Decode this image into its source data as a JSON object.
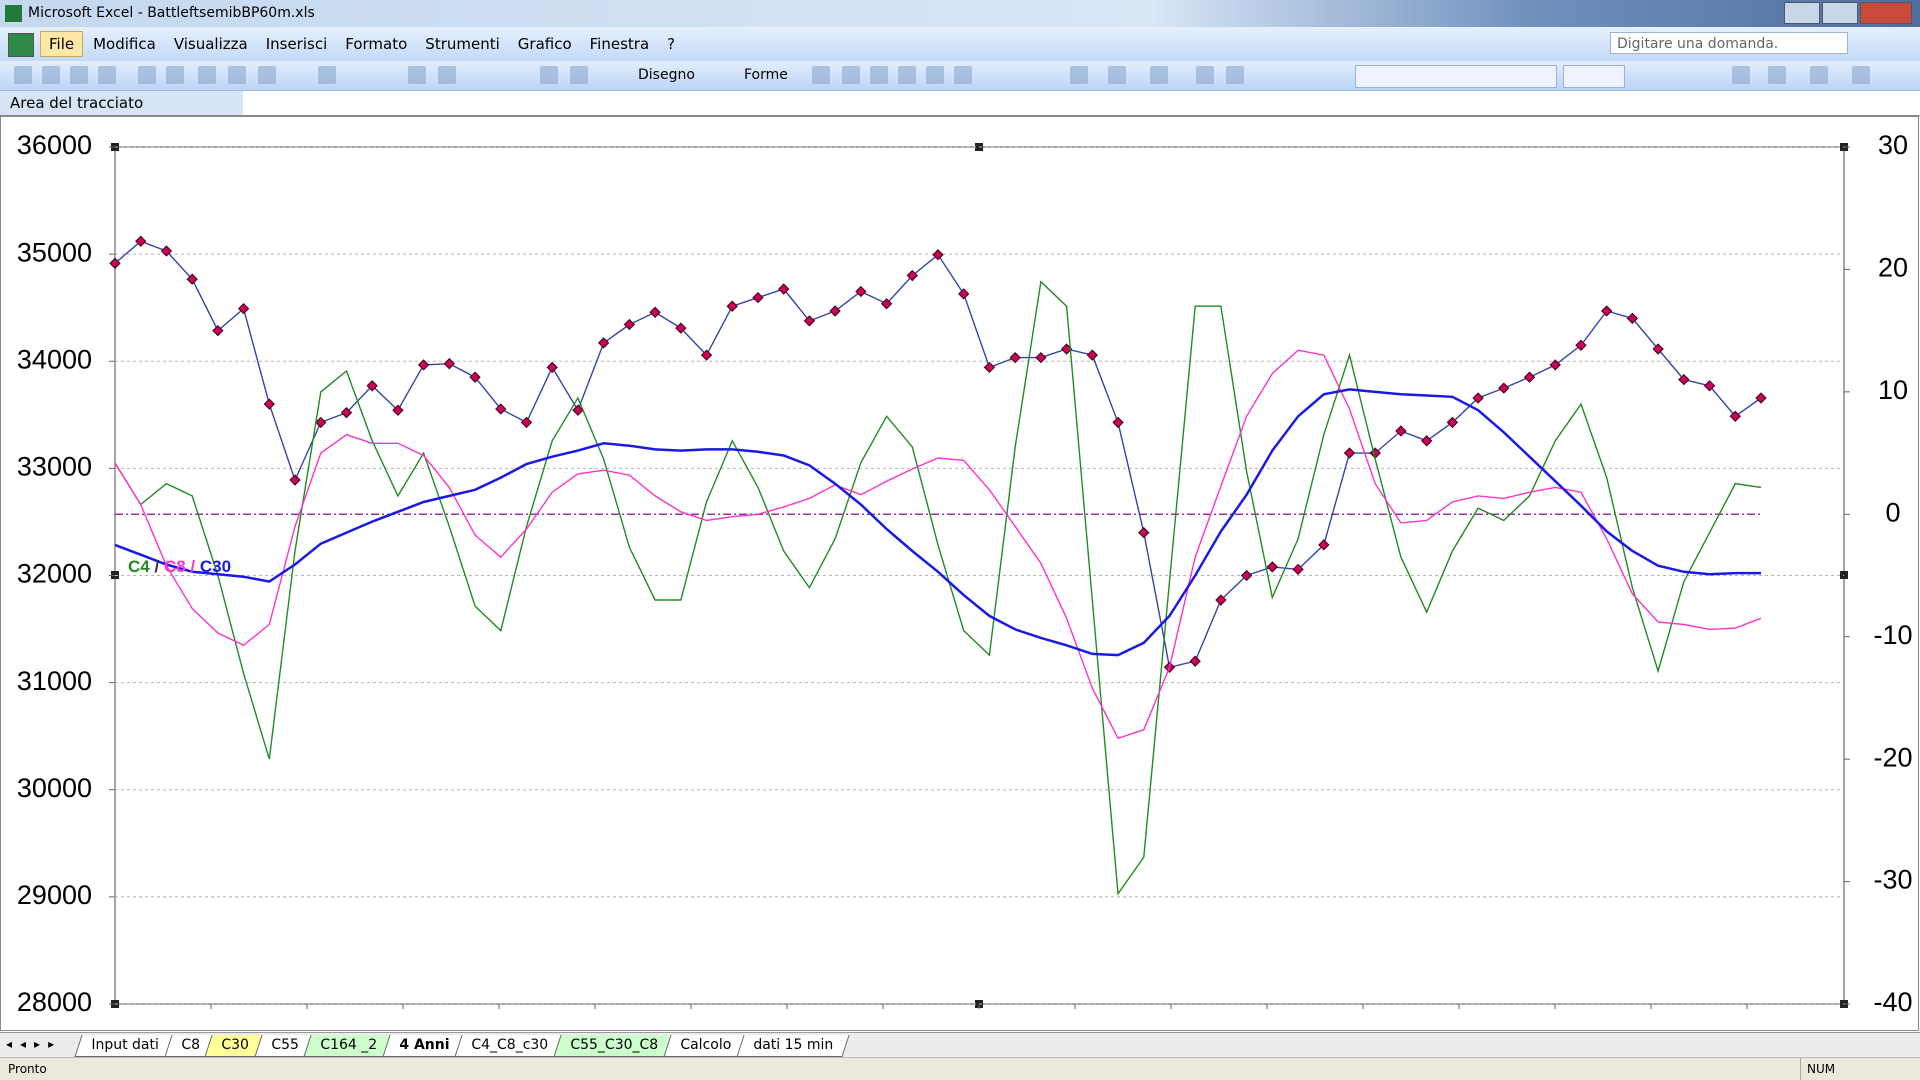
{
  "window": {
    "title": "Microsoft Excel - BattleftsemibBP60m.xls"
  },
  "menu": [
    "File",
    "Modifica",
    "Visualizza",
    "Inserisci",
    "Formato",
    "Strumenti",
    "Grafico",
    "Finestra",
    "?"
  ],
  "help_box": "Digitare una domanda.",
  "toolbar": {
    "drawing": "Disegno",
    "shapes": "Forme"
  },
  "name_box": "Area del tracciato",
  "sheet_tabs": {
    "active": 5,
    "tabs": [
      {
        "label": "Input dati",
        "color": "#ffffff"
      },
      {
        "label": "C8",
        "color": "#ffffff"
      },
      {
        "label": "C30",
        "color": "#ffff99"
      },
      {
        "label": "C55",
        "color": "#ffffff"
      },
      {
        "label": "C164 _2",
        "color": "#ccffcc"
      },
      {
        "label": "4 Anni",
        "color": "#ccffcc"
      },
      {
        "label": "C4_C8_c30",
        "color": "#ffffff"
      },
      {
        "label": "C55_C30_C8",
        "color": "#ccffcc"
      },
      {
        "label": "Calcolo",
        "color": "#ffffff"
      },
      {
        "label": "dati 15 min",
        "color": "#ffffff"
      }
    ]
  },
  "status": {
    "left": "Pronto",
    "right": "NUM"
  },
  "chart_data": {
    "type": "line",
    "ylim": [
      28000,
      36000
    ],
    "yticks": [
      28000,
      29000,
      30000,
      31000,
      32000,
      33000,
      34000,
      35000,
      36000
    ],
    "y2lim": [
      -40,
      30
    ],
    "y2ticks": [
      -40,
      -30,
      -20,
      -10,
      0,
      10,
      20,
      30
    ],
    "grid": true,
    "y2_reference": 0,
    "y2_reference_color": "#993399",
    "legend_separators": [
      "/",
      "/"
    ],
    "series": [
      {
        "color": "#3344aa",
        "marker_color": "#cc0055",
        "axis": "y",
        "values": [
          34914,
          35120,
          35029,
          34766,
          34286,
          34491,
          33600,
          32891,
          33429,
          33520,
          33771,
          33543,
          33966,
          33977,
          33851,
          33554,
          33429,
          33943,
          33543,
          34171,
          34343,
          34457,
          34309,
          34057,
          34514,
          34594,
          34674,
          34377,
          34469,
          34651,
          34537,
          34800,
          34994,
          34629,
          33943,
          34034,
          34034,
          34114,
          34057,
          33429,
          32400,
          31143,
          31200,
          31771,
          32000,
          32080,
          32057,
          32286,
          33143,
          33143,
          33349,
          33257,
          33429,
          33657,
          33749,
          33851,
          33966,
          34149,
          34469,
          34400,
          34114,
          33829,
          33771,
          33486,
          33657
        ]
      },
      {
        "name": "C4",
        "color": "#228b22",
        "axis": "y2",
        "values": [
          4.2,
          0.8,
          2.5,
          1.5,
          -5,
          -13,
          -20,
          -3,
          10,
          11.7,
          6,
          1.5,
          5,
          -1,
          -7.5,
          -9.5,
          -1,
          6,
          9.5,
          4.5,
          -2.7,
          -7,
          -7,
          1,
          6,
          2.2,
          -3,
          -6,
          -2,
          4.2,
          8,
          5.5,
          -2.5,
          -9.5,
          -11.5,
          5.5,
          19,
          17,
          -7,
          -31,
          -28,
          -5.5,
          17,
          17,
          3.5,
          -6.8,
          -2,
          6.5,
          13,
          4.5,
          -3.5,
          -8,
          -3,
          0.5,
          -0.5,
          1.5,
          6,
          9,
          3,
          -6,
          -12.8,
          -5.5,
          -1.5,
          2.5,
          2.2
        ]
      },
      {
        "name": "C8",
        "color": "#ff33cc",
        "axis": "y2",
        "values": [
          4.2,
          0.8,
          -4.2,
          -7.7,
          -9.7,
          -10.7,
          -9,
          -1,
          5,
          6.5,
          5.8,
          5.8,
          4.8,
          2.2,
          -1.7,
          -3.5,
          -1.2,
          1.8,
          3.3,
          3.6,
          3.2,
          1.5,
          0.2,
          -0.5,
          -0.2,
          0,
          0.6,
          1.3,
          2.4,
          1.6,
          2.7,
          3.7,
          4.6,
          4.4,
          2,
          -1,
          -4,
          -8.5,
          -14.2,
          -18.3,
          -17.6,
          -12.5,
          -3.5,
          2.3,
          8,
          11.5,
          13.4,
          13,
          8.6,
          2.5,
          -0.7,
          -0.5,
          1,
          1.5,
          1.3,
          1.8,
          2.2,
          1.8,
          -2,
          -6.5,
          -8.8,
          -9,
          -9.4,
          -9.3,
          -8.5
        ]
      },
      {
        "name": "C30",
        "color": "#1a1ae6",
        "axis": "y2",
        "values": [
          -2.5,
          -3.3,
          -4.1,
          -4.7,
          -4.9,
          -5.1,
          -5.5,
          -4.1,
          -2.4,
          -1.5,
          -0.6,
          0.2,
          1,
          1.5,
          2,
          3,
          4.1,
          4.7,
          5.2,
          5.8,
          5.6,
          5.3,
          5.2,
          5.3,
          5.3,
          5.1,
          4.8,
          4,
          2.5,
          0.8,
          -1.2,
          -3,
          -4.7,
          -6.6,
          -8.3,
          -9.4,
          -10.1,
          -10.7,
          -11.4,
          -11.5,
          -10.5,
          -8.3,
          -5,
          -1.4,
          1.6,
          5.2,
          8,
          9.8,
          10.2,
          10,
          9.8,
          9.7,
          9.6,
          8.5,
          6.7,
          4.7,
          2.7,
          0.7,
          -1.4,
          -3,
          -4.2,
          -4.7,
          -4.9,
          -4.8,
          -4.8
        ]
      }
    ]
  }
}
